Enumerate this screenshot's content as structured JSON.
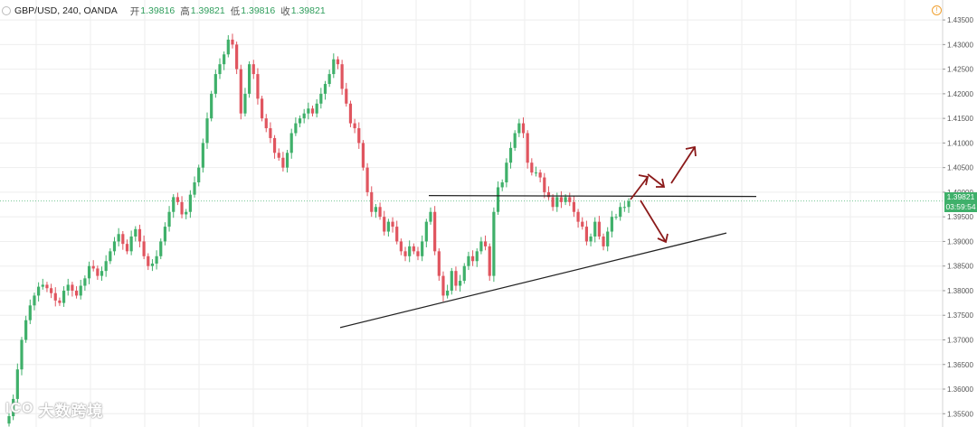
{
  "header": {
    "symbol": "GBP/USD, 240, OANDA",
    "open_label": "开",
    "open_value": "1.39816",
    "high_label": "高",
    "high_value": "1.39821",
    "low_label": "低",
    "low_value": "1.39816",
    "close_label": "收",
    "close_value": "1.39821"
  },
  "price_tag": "1.39821",
  "countdown_tag": "03:59:54",
  "watermark": {
    "logo": "ICO",
    "text": "大数跨境"
  },
  "colors": {
    "up": "#3fb06a",
    "down": "#e0555f",
    "trendline": "#222222",
    "arrow": "#8b1a1a",
    "grid": "#eeeeee",
    "price_line": "#3fb06a"
  },
  "chart_data": {
    "type": "candlestick",
    "y_axis_ticks": [
      "1.43500",
      "1.43000",
      "1.42500",
      "1.42000",
      "1.41500",
      "1.41000",
      "1.40500",
      "1.40000",
      "1.39500",
      "1.39000",
      "1.38500",
      "1.38000",
      "1.37500",
      "1.37000",
      "1.36500",
      "1.36000",
      "1.35500"
    ],
    "ylim": [
      1.3545,
      1.4363
    ],
    "last_price": 1.39821,
    "closes": [
      1.3545,
      1.358,
      1.364,
      1.37,
      1.374,
      1.377,
      1.379,
      1.3808,
      1.3812,
      1.3805,
      1.3795,
      1.378,
      1.3775,
      1.38,
      1.3812,
      1.38,
      1.379,
      1.381,
      1.3825,
      1.385,
      1.3845,
      1.383,
      1.384,
      1.386,
      1.388,
      1.39,
      1.3915,
      1.3895,
      1.388,
      1.391,
      1.3925,
      1.39,
      1.387,
      1.385,
      1.3855,
      1.387,
      1.39,
      1.393,
      1.396,
      1.399,
      1.398,
      1.3955,
      1.396,
      1.3995,
      1.402,
      1.405,
      1.41,
      1.415,
      1.42,
      1.424,
      1.426,
      1.428,
      1.431,
      1.43,
      1.425,
      1.416,
      1.42,
      1.426,
      1.424,
      1.419,
      1.415,
      1.413,
      1.411,
      1.408,
      1.407,
      1.405,
      1.408,
      1.412,
      1.414,
      1.415,
      1.416,
      1.417,
      1.416,
      1.418,
      1.42,
      1.422,
      1.424,
      1.427,
      1.426,
      1.421,
      1.418,
      1.414,
      1.413,
      1.41,
      1.405,
      1.4,
      1.396,
      1.397,
      1.395,
      1.392,
      1.394,
      1.393,
      1.39,
      1.388,
      1.387,
      1.389,
      1.388,
      1.387,
      1.39,
      1.394,
      1.396,
      1.388,
      1.383,
      1.379,
      1.38,
      1.384,
      1.381,
      1.382,
      1.385,
      1.387,
      1.386,
      1.388,
      1.39,
      1.389,
      1.383,
      1.396,
      1.401,
      1.402,
      1.406,
      1.409,
      1.412,
      1.414,
      1.412,
      1.406,
      1.404,
      1.404,
      1.403,
      1.4,
      1.399,
      1.397,
      1.399,
      1.398,
      1.399,
      1.398,
      1.396,
      1.394,
      1.393,
      1.39,
      1.391,
      1.394,
      1.391,
      1.389,
      1.392,
      1.395,
      1.395,
      1.397,
      1.397,
      1.3982
    ],
    "trendlines": [
      {
        "kind": "resistance",
        "p1": [
          1.3995
        ],
        "p2": [
          1.3995
        ]
      },
      {
        "kind": "support",
        "from": 1.3725,
        "to": 1.3917
      }
    ]
  }
}
